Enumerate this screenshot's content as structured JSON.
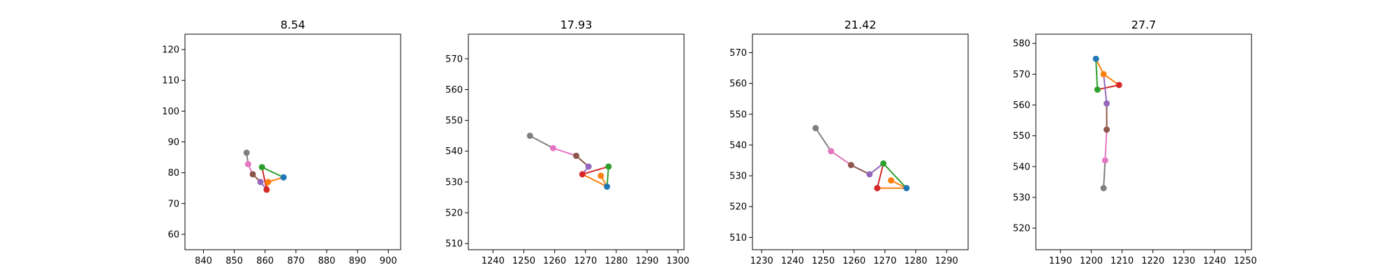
{
  "chart_data": [
    {
      "type": "line",
      "title": "8.54",
      "xlim": [
        834,
        904
      ],
      "ylim": [
        55,
        125
      ],
      "xticks": [
        "840",
        "850",
        "860",
        "870",
        "880",
        "890",
        "900"
      ],
      "yticks": [
        "60",
        "70",
        "80",
        "90",
        "100",
        "110",
        "120"
      ],
      "grid": false,
      "points": [
        {
          "x": 866.0,
          "y": 78.5,
          "color": "#1f77b4"
        },
        {
          "x": 861.0,
          "y": 77.0,
          "color": "#ff7f0e"
        },
        {
          "x": 859.0,
          "y": 81.8,
          "color": "#2ca02c"
        },
        {
          "x": 860.5,
          "y": 74.5,
          "color": "#d62728"
        },
        {
          "x": 858.5,
          "y": 77.0,
          "color": "#9467bd"
        },
        {
          "x": 856.0,
          "y": 79.5,
          "color": "#8c564b"
        },
        {
          "x": 854.5,
          "y": 82.8,
          "color": "#e377c2"
        },
        {
          "x": 854.0,
          "y": 86.5,
          "color": "#7f7f7f"
        }
      ],
      "segments": [
        {
          "from": 0,
          "to": 1,
          "color": "#ff7f0e"
        },
        {
          "from": 0,
          "to": 2,
          "color": "#2ca02c"
        },
        {
          "from": 1,
          "to": 3,
          "color": "#ff7f0e"
        },
        {
          "from": 2,
          "to": 3,
          "color": "#d62728"
        },
        {
          "from": 3,
          "to": 4,
          "color": "#9467bd"
        },
        {
          "from": 4,
          "to": 5,
          "color": "#8c564b"
        },
        {
          "from": 5,
          "to": 6,
          "color": "#e377c2"
        },
        {
          "from": 6,
          "to": 7,
          "color": "#7f7f7f"
        }
      ]
    },
    {
      "type": "line",
      "title": "17.93",
      "xlim": [
        1232,
        1302
      ],
      "ylim": [
        508,
        578
      ],
      "xticks": [
        "1240",
        "1250",
        "1260",
        "1270",
        "1280",
        "1290",
        "1300"
      ],
      "yticks": [
        "510",
        "520",
        "530",
        "540",
        "550",
        "560",
        "570"
      ],
      "grid": false,
      "points": [
        {
          "x": 1277.0,
          "y": 528.5,
          "color": "#1f77b4"
        },
        {
          "x": 1275.0,
          "y": 532.0,
          "color": "#ff7f0e"
        },
        {
          "x": 1277.5,
          "y": 535.0,
          "color": "#2ca02c"
        },
        {
          "x": 1269.0,
          "y": 532.5,
          "color": "#d62728"
        },
        {
          "x": 1271.0,
          "y": 535.0,
          "color": "#9467bd"
        },
        {
          "x": 1267.0,
          "y": 538.5,
          "color": "#8c564b"
        },
        {
          "x": 1259.5,
          "y": 541.0,
          "color": "#e377c2"
        },
        {
          "x": 1252.0,
          "y": 545.0,
          "color": "#7f7f7f"
        }
      ],
      "segments": [
        {
          "from": 0,
          "to": 1,
          "color": "#ff7f0e"
        },
        {
          "from": 0,
          "to": 2,
          "color": "#2ca02c"
        },
        {
          "from": 0,
          "to": 3,
          "color": "#ff7f0e"
        },
        {
          "from": 2,
          "to": 3,
          "color": "#d62728"
        },
        {
          "from": 3,
          "to": 4,
          "color": "#9467bd"
        },
        {
          "from": 4,
          "to": 5,
          "color": "#8c564b"
        },
        {
          "from": 5,
          "to": 6,
          "color": "#e377c2"
        },
        {
          "from": 6,
          "to": 7,
          "color": "#7f7f7f"
        }
      ]
    },
    {
      "type": "line",
      "title": "21.42",
      "xlim": [
        1227,
        1297
      ],
      "ylim": [
        506,
        576
      ],
      "xticks": [
        "1230",
        "1240",
        "1250",
        "1260",
        "1270",
        "1280",
        "1290"
      ],
      "yticks": [
        "510",
        "520",
        "530",
        "540",
        "550",
        "560",
        "570"
      ],
      "grid": false,
      "points": [
        {
          "x": 1277.0,
          "y": 526.0,
          "color": "#1f77b4"
        },
        {
          "x": 1272.0,
          "y": 528.5,
          "color": "#ff7f0e"
        },
        {
          "x": 1269.5,
          "y": 534.0,
          "color": "#2ca02c"
        },
        {
          "x": 1267.5,
          "y": 526.0,
          "color": "#d62728"
        },
        {
          "x": 1265.0,
          "y": 530.5,
          "color": "#9467bd"
        },
        {
          "x": 1259.0,
          "y": 533.5,
          "color": "#8c564b"
        },
        {
          "x": 1252.5,
          "y": 538.0,
          "color": "#e377c2"
        },
        {
          "x": 1247.5,
          "y": 545.5,
          "color": "#7f7f7f"
        }
      ],
      "segments": [
        {
          "from": 0,
          "to": 1,
          "color": "#ff7f0e"
        },
        {
          "from": 0,
          "to": 2,
          "color": "#2ca02c"
        },
        {
          "from": 0,
          "to": 3,
          "color": "#ff7f0e"
        },
        {
          "from": 2,
          "to": 3,
          "color": "#d62728"
        },
        {
          "from": 2,
          "to": 4,
          "color": "#9467bd"
        },
        {
          "from": 4,
          "to": 5,
          "color": "#8c564b"
        },
        {
          "from": 5,
          "to": 6,
          "color": "#e377c2"
        },
        {
          "from": 6,
          "to": 7,
          "color": "#7f7f7f"
        }
      ]
    },
    {
      "type": "line",
      "title": "27.7",
      "xlim": [
        1182,
        1252
      ],
      "ylim": [
        513,
        583
      ],
      "xticks": [
        "1190",
        "1200",
        "1210",
        "1220",
        "1230",
        "1240",
        "1250"
      ],
      "yticks": [
        "520",
        "530",
        "540",
        "550",
        "560",
        "570",
        "580"
      ],
      "grid": false,
      "points": [
        {
          "x": 1201.5,
          "y": 575.0,
          "color": "#1f77b4"
        },
        {
          "x": 1204.0,
          "y": 570.0,
          "color": "#ff7f0e"
        },
        {
          "x": 1202.0,
          "y": 565.0,
          "color": "#2ca02c"
        },
        {
          "x": 1209.0,
          "y": 566.5,
          "color": "#d62728"
        },
        {
          "x": 1205.0,
          "y": 560.5,
          "color": "#9467bd"
        },
        {
          "x": 1205.0,
          "y": 552.0,
          "color": "#8c564b"
        },
        {
          "x": 1204.5,
          "y": 542.0,
          "color": "#e377c2"
        },
        {
          "x": 1204.0,
          "y": 533.0,
          "color": "#7f7f7f"
        }
      ],
      "segments": [
        {
          "from": 0,
          "to": 1,
          "color": "#ff7f0e"
        },
        {
          "from": 1,
          "to": 3,
          "color": "#ff7f0e"
        },
        {
          "from": 0,
          "to": 2,
          "color": "#2ca02c"
        },
        {
          "from": 2,
          "to": 3,
          "color": "#d62728"
        },
        {
          "from": 1,
          "to": 4,
          "color": "#9467bd"
        },
        {
          "from": 4,
          "to": 5,
          "color": "#8c564b"
        },
        {
          "from": 5,
          "to": 6,
          "color": "#e377c2"
        },
        {
          "from": 6,
          "to": 7,
          "color": "#7f7f7f"
        }
      ]
    }
  ]
}
